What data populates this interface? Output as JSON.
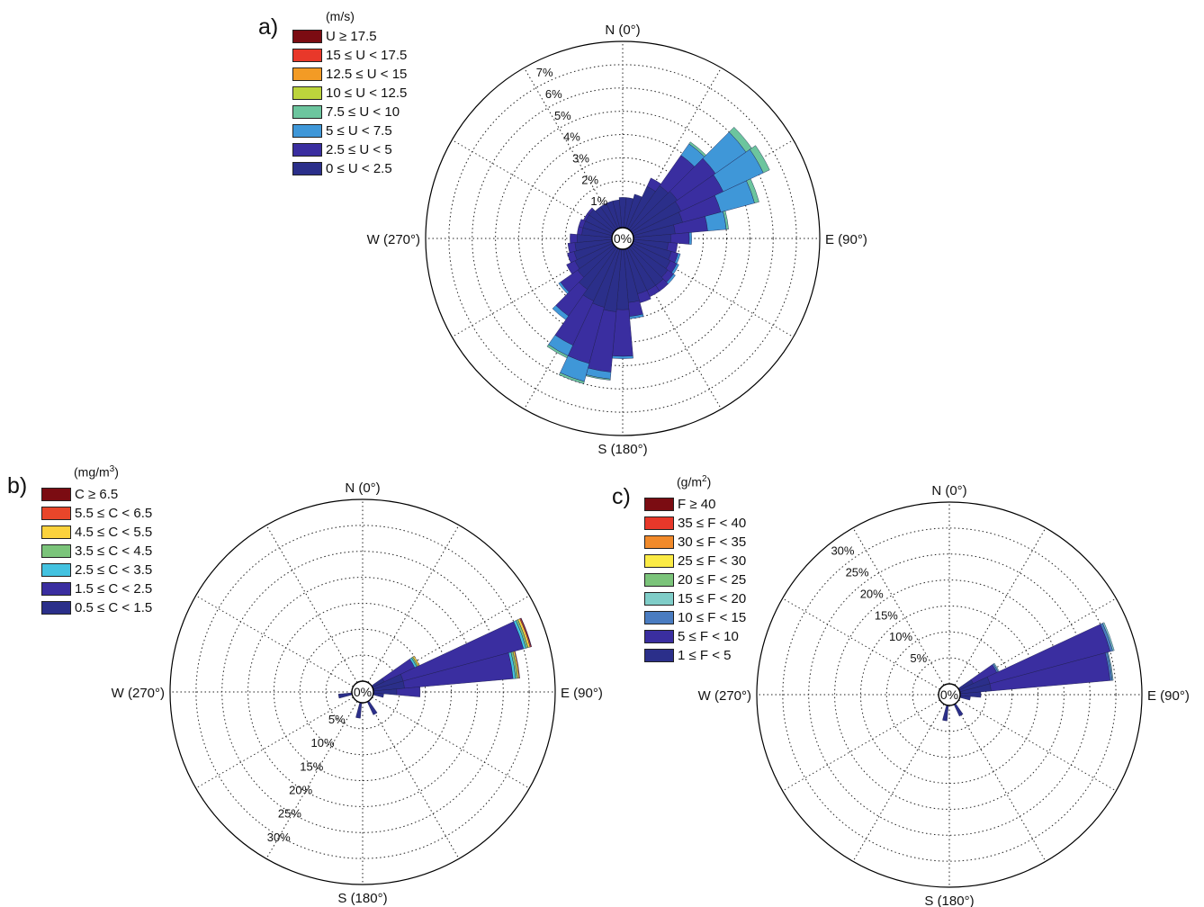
{
  "chart_data": [
    {
      "type": "polar-bar",
      "panel": "a)",
      "units": "(m/s)",
      "rlim": [
        0,
        8
      ],
      "ring_labels": [
        "1%",
        "2%",
        "3%",
        "4%",
        "5%",
        "6%",
        "7%"
      ],
      "center_label": "0%",
      "direction_labels": {
        "N": "N (0°)",
        "E": "E (90°)",
        "S": "S (180°)",
        "W": "W (270°)"
      },
      "grid": true,
      "legend": [
        "U ≥ 17.5",
        "15 ≤ U < 17.5",
        "12.5 ≤ U < 15",
        "10 ≤ U < 12.5",
        "7.5 ≤ U < 10",
        "5 ≤ U < 7.5",
        "2.5 ≤ U < 5",
        "0 ≤ U < 2.5"
      ],
      "colors": [
        "#7b0c12",
        "#e8382a",
        "#f39b25",
        "#bcd43c",
        "#6cc59e",
        "#3f97d8",
        "#3a2ea0",
        "#2b2f8a"
      ],
      "sectors": [
        {
          "direction": 0,
          "values": [
            1.3,
            0,
            0,
            0,
            0,
            0,
            0,
            0
          ]
        },
        {
          "direction": 10,
          "values": [
            1.3,
            0,
            0,
            0,
            0,
            0,
            0,
            0
          ]
        },
        {
          "direction": 20,
          "values": [
            1.5,
            0,
            0,
            0,
            0,
            0,
            0,
            0
          ]
        },
        {
          "direction": 30,
          "values": [
            2.0,
            0.4,
            0,
            0,
            0,
            0,
            0,
            0
          ]
        },
        {
          "direction": 40,
          "values": [
            2.3,
            1.6,
            0.6,
            0.1,
            0,
            0,
            0,
            0
          ]
        },
        {
          "direction": 50,
          "values": [
            2.4,
            2.0,
            1.6,
            0.3,
            0,
            0,
            0,
            0
          ]
        },
        {
          "direction": 60,
          "values": [
            2.3,
            2.0,
            1.9,
            0.3,
            0,
            0,
            0,
            0
          ]
        },
        {
          "direction": 70,
          "values": [
            2.2,
            1.7,
            1.5,
            0.2,
            0,
            0,
            0,
            0
          ]
        },
        {
          "direction": 80,
          "values": [
            1.8,
            1.4,
            0.8,
            0.1,
            0,
            0,
            0,
            0
          ]
        },
        {
          "direction": 90,
          "values": [
            1.6,
            0.8,
            0.1,
            0,
            0,
            0,
            0,
            0
          ]
        },
        {
          "direction": 100,
          "values": [
            1.5,
            0.4,
            0,
            0,
            0,
            0,
            0,
            0
          ]
        },
        {
          "direction": 110,
          "values": [
            1.7,
            0.3,
            0.1,
            0,
            0,
            0,
            0,
            0
          ]
        },
        {
          "direction": 120,
          "values": [
            1.8,
            0.3,
            0.1,
            0,
            0,
            0,
            0,
            0
          ]
        },
        {
          "direction": 130,
          "values": [
            1.9,
            0.3,
            0.1,
            0,
            0,
            0,
            0,
            0
          ]
        },
        {
          "direction": 140,
          "values": [
            2.0,
            0.3,
            0,
            0,
            0,
            0,
            0,
            0
          ]
        },
        {
          "direction": 150,
          "values": [
            2.0,
            0.3,
            0,
            0,
            0,
            0,
            0,
            0
          ]
        },
        {
          "direction": 160,
          "values": [
            2.0,
            0.4,
            0,
            0,
            0,
            0,
            0,
            0
          ]
        },
        {
          "direction": 170,
          "values": [
            2.3,
            0.6,
            0.1,
            0,
            0,
            0,
            0,
            0
          ]
        },
        {
          "direction": 180,
          "values": [
            2.6,
            2.0,
            0.1,
            0,
            0,
            0,
            0,
            0
          ]
        },
        {
          "direction": 190,
          "values": [
            2.7,
            2.6,
            0.3,
            0.05,
            0,
            0,
            0,
            0
          ]
        },
        {
          "direction": 200,
          "values": [
            2.6,
            2.5,
            0.8,
            0.1,
            0,
            0,
            0,
            0
          ]
        },
        {
          "direction": 210,
          "values": [
            2.5,
            2.1,
            0.5,
            0.1,
            0,
            0,
            0,
            0
          ]
        },
        {
          "direction": 220,
          "values": [
            2.2,
            1.4,
            0.2,
            0,
            0,
            0,
            0,
            0
          ]
        },
        {
          "direction": 230,
          "values": [
            1.9,
            0.9,
            0.1,
            0,
            0,
            0,
            0,
            0
          ]
        },
        {
          "direction": 240,
          "values": [
            1.8,
            0.4,
            0,
            0,
            0,
            0,
            0,
            0
          ]
        },
        {
          "direction": 250,
          "values": [
            1.7,
            0.3,
            0,
            0,
            0,
            0,
            0,
            0
          ]
        },
        {
          "direction": 260,
          "values": [
            1.6,
            0.3,
            0,
            0,
            0,
            0,
            0,
            0
          ]
        },
        {
          "direction": 270,
          "values": [
            1.5,
            0.3,
            0,
            0,
            0,
            0,
            0,
            0
          ]
        },
        {
          "direction": 280,
          "values": [
            1.3,
            0.2,
            0,
            0,
            0,
            0,
            0,
            0
          ]
        },
        {
          "direction": 290,
          "values": [
            1.3,
            0.2,
            0,
            0,
            0,
            0,
            0,
            0
          ]
        },
        {
          "direction": 300,
          "values": [
            1.3,
            0.1,
            0,
            0,
            0,
            0,
            0,
            0
          ]
        },
        {
          "direction": 310,
          "values": [
            1.3,
            0.1,
            0,
            0,
            0,
            0,
            0,
            0
          ]
        },
        {
          "direction": 320,
          "values": [
            1.2,
            0,
            0,
            0,
            0,
            0,
            0,
            0
          ]
        },
        {
          "direction": 330,
          "values": [
            1.2,
            0,
            0,
            0,
            0,
            0,
            0,
            0
          ]
        },
        {
          "direction": 340,
          "values": [
            1.2,
            0,
            0,
            0,
            0,
            0,
            0,
            0
          ]
        },
        {
          "direction": 350,
          "values": [
            1.2,
            0,
            0,
            0,
            0,
            0,
            0,
            0
          ]
        }
      ]
    },
    {
      "type": "polar-bar",
      "panel": "b)",
      "units": "(mg/m³)",
      "rlim": [
        0,
        35
      ],
      "ring_labels": [
        "5%",
        "10%",
        "15%",
        "20%",
        "25%",
        "30%"
      ],
      "center_label": "0%",
      "direction_labels": {
        "N": "N (0°)",
        "E": "E (90°)",
        "S": "S (180°)",
        "W": "W (270°)"
      },
      "grid": true,
      "legend": [
        "C ≥ 6.5",
        "5.5 ≤ C < 6.5",
        "4.5 ≤ C < 5.5",
        "3.5 ≤ C < 4.5",
        "2.5 ≤ C < 3.5",
        "1.5 ≤ C < 2.5",
        "0.5 ≤ C < 1.5"
      ],
      "colors": [
        "#7b0c12",
        "#e8462a",
        "#fbd23c",
        "#7bc47a",
        "#43c2e0",
        "#3a2ea0",
        "#2b2f8a"
      ],
      "sectors": [
        {
          "direction": 60,
          "values": [
            2.5,
            6.5,
            0.4,
            0.3,
            0.3,
            0,
            0
          ]
        },
        {
          "direction": 70,
          "values": [
            6.0,
            24.0,
            0.5,
            0.4,
            0.4,
            0.2,
            0.1
          ]
        },
        {
          "direction": 80,
          "values": [
            6.0,
            21.0,
            0.5,
            0.4,
            0.3,
            0.1,
            0
          ]
        },
        {
          "direction": 90,
          "values": [
            4.5,
            4.5,
            0,
            0,
            0,
            0,
            0
          ]
        },
        {
          "direction": 100,
          "values": [
            2.0,
            0,
            0,
            0,
            0,
            0,
            0
          ]
        },
        {
          "direction": 150,
          "values": [
            2.8,
            0,
            0,
            0,
            0,
            0,
            0
          ]
        },
        {
          "direction": 190,
          "values": [
            3.0,
            0,
            0,
            0,
            0,
            0,
            0
          ]
        },
        {
          "direction": 260,
          "values": [
            2.6,
            0,
            0,
            0,
            0,
            0,
            0
          ]
        }
      ]
    },
    {
      "type": "polar-bar",
      "panel": "c)",
      "units": "(g/m²)",
      "rlim": [
        0,
        35
      ],
      "ring_labels": [
        "5%",
        "10%",
        "15%",
        "20%",
        "25%",
        "30%"
      ],
      "center_label": "0%",
      "direction_labels": {
        "N": "N (0°)",
        "E": "E (90°)",
        "S": "S (180°)",
        "W": "W (270°)"
      },
      "grid": true,
      "legend": [
        "F ≥ 40",
        "35 ≤ F < 40",
        "30 ≤ F < 35",
        "25 ≤ F < 30",
        "20 ≤ F < 25",
        "15 ≤ F < 20",
        "10 ≤ F < 15",
        "5 ≤ F < 10",
        "1 ≤ F < 5"
      ],
      "colors": [
        "#7b0c12",
        "#e8382a",
        "#f18a2a",
        "#fbeb45",
        "#7bc47a",
        "#7fcdc8",
        "#4a7cc1",
        "#3a2ea0",
        "#2b2f8a"
      ],
      "sectors": [
        {
          "direction": 60,
          "values": [
            3.0,
            5.0,
            0.3,
            0.2,
            0,
            0,
            0,
            0,
            0
          ]
        },
        {
          "direction": 70,
          "values": [
            6.0,
            24.0,
            0.5,
            0.3,
            0,
            0,
            0,
            0,
            0
          ]
        },
        {
          "direction": 80,
          "values": [
            6.0,
            23.0,
            0.4,
            0.2,
            0,
            0,
            0,
            0,
            0
          ]
        },
        {
          "direction": 90,
          "values": [
            4.0,
            0,
            0,
            0,
            0,
            0,
            0,
            0,
            0
          ]
        },
        {
          "direction": 100,
          "values": [
            2.0,
            0,
            0,
            0,
            0,
            0,
            0,
            0,
            0
          ]
        },
        {
          "direction": 150,
          "values": [
            2.5,
            0,
            0,
            0,
            0,
            0,
            0,
            0,
            0
          ]
        },
        {
          "direction": 190,
          "values": [
            3.0,
            0,
            0,
            0,
            0,
            0,
            0,
            0,
            0
          ]
        }
      ]
    }
  ]
}
